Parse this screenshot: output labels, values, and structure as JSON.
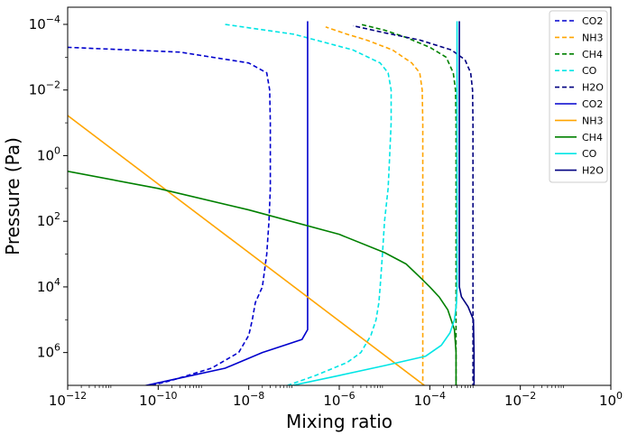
{
  "chart_data": {
    "type": "line",
    "xlabel": "Mixing ratio",
    "ylabel": "Pressure (Pa)",
    "x_scale": "log",
    "y_scale": "log",
    "y_inverted": true,
    "xlim": [
      1e-12,
      1
    ],
    "ylim": [
      10000000.0,
      3e-05
    ],
    "x_ticks": [
      {
        "value": 1e-12,
        "base": "10",
        "exp": "−12"
      },
      {
        "value": 1e-10,
        "base": "10",
        "exp": "−10"
      },
      {
        "value": 1e-08,
        "base": "10",
        "exp": "−8"
      },
      {
        "value": 1e-06,
        "base": "10",
        "exp": "−6"
      },
      {
        "value": 0.0001,
        "base": "10",
        "exp": "−4"
      },
      {
        "value": 0.01,
        "base": "10",
        "exp": "−2"
      },
      {
        "value": 1,
        "base": "10",
        "exp": "0"
      }
    ],
    "y_ticks": [
      {
        "value": 0.0001,
        "base": "10",
        "exp": "−4"
      },
      {
        "value": 0.01,
        "base": "10",
        "exp": "−2"
      },
      {
        "value": 1,
        "base": "10",
        "exp": "0"
      },
      {
        "value": 100.0,
        "base": "10",
        "exp": "2"
      },
      {
        "value": 10000.0,
        "base": "10",
        "exp": "4"
      },
      {
        "value": 1000000.0,
        "base": "10",
        "exp": "6"
      }
    ],
    "grid": false,
    "legend_position": "top-right",
    "series": [
      {
        "name": "CO2",
        "style": "dashed",
        "color": "#0000cd",
        "points": [
          [
            3.5e-11,
            13000000.0
          ],
          [
            2e-10,
            7000000.0
          ],
          [
            1.5e-09,
            3000000.0
          ],
          [
            6e-09,
            1000000.0
          ],
          [
            1e-08,
            300000.0
          ],
          [
            1.2e-08,
            100000.0
          ],
          [
            1.4e-08,
            30000.0
          ],
          [
            2e-08,
            10000.0
          ],
          [
            2.5e-08,
            1000.0
          ],
          [
            2.8e-08,
            100.0
          ],
          [
            3e-08,
            10
          ],
          [
            3e-08,
            1
          ],
          [
            3e-08,
            0.1
          ],
          [
            2.9e-08,
            0.01
          ],
          [
            2.5e-08,
            0.003
          ],
          [
            1e-08,
            0.0015
          ],
          [
            3e-10,
            0.0007
          ],
          [
            1e-12,
            0.0005
          ]
        ]
      },
      {
        "name": "NH3",
        "style": "dashed",
        "color": "#ffa500",
        "points": [
          [
            7e-05,
            12000000.0
          ],
          [
            7e-05,
            1000000.0
          ],
          [
            7e-05,
            100000.0
          ],
          [
            7e-05,
            10000.0
          ],
          [
            7e-05,
            1000.0
          ],
          [
            7e-05,
            100.0
          ],
          [
            7e-05,
            10
          ],
          [
            7e-05,
            1
          ],
          [
            7e-05,
            0.1
          ],
          [
            6.8e-05,
            0.01
          ],
          [
            6e-05,
            0.003
          ],
          [
            4e-05,
            0.0015
          ],
          [
            1.5e-05,
            0.0006
          ],
          [
            4e-06,
            0.0003
          ],
          [
            1.5e-06,
            0.0002
          ],
          [
            5e-07,
            0.00012
          ]
        ]
      },
      {
        "name": "CH4",
        "style": "dashed",
        "color": "#008000",
        "points": [
          [
            0.00038,
            12000000.0
          ],
          [
            0.00038,
            1000000.0
          ],
          [
            0.00038,
            100000.0
          ],
          [
            0.00038,
            10000.0
          ],
          [
            0.00038,
            1000.0
          ],
          [
            0.00038,
            100.0
          ],
          [
            0.00038,
            10
          ],
          [
            0.00038,
            1
          ],
          [
            0.00038,
            0.1
          ],
          [
            0.00037,
            0.01
          ],
          [
            0.00033,
            0.003
          ],
          [
            0.00023,
            0.001
          ],
          [
            0.0001,
            0.0005
          ],
          [
            3e-05,
            0.00025
          ],
          [
            1e-05,
            0.00015
          ],
          [
            3e-06,
            0.0001
          ]
        ]
      },
      {
        "name": "CO",
        "style": "dashed",
        "color": "#00e5e5",
        "points": [
          [
            5e-08,
            12000000.0
          ],
          [
            3e-07,
            5000000.0
          ],
          [
            1.5e-06,
            2000000.0
          ],
          [
            3e-06,
            1000000.0
          ],
          [
            5e-06,
            300000.0
          ],
          [
            6.5e-06,
            100000.0
          ],
          [
            7.5e-06,
            30000.0
          ],
          [
            8e-06,
            10000.0
          ],
          [
            9e-06,
            1000.0
          ],
          [
            1e-05,
            100.0
          ],
          [
            1.2e-05,
            10
          ],
          [
            1.3e-05,
            1
          ],
          [
            1.4e-05,
            0.1
          ],
          [
            1.4e-05,
            0.01
          ],
          [
            1.2e-05,
            0.003
          ],
          [
            8e-06,
            0.0015
          ],
          [
            2e-06,
            0.0006
          ],
          [
            1e-07,
            0.0002
          ],
          [
            3e-09,
            0.0001
          ]
        ]
      },
      {
        "name": "H2O",
        "style": "dashed",
        "color": "#000080",
        "points": [
          [
            0.0009,
            12000000.0
          ],
          [
            0.0009,
            1000000.0
          ],
          [
            0.0009,
            100000.0
          ],
          [
            0.0009,
            10000.0
          ],
          [
            0.0009,
            1000.0
          ],
          [
            0.0009,
            100.0
          ],
          [
            0.0009,
            10
          ],
          [
            0.0009,
            1
          ],
          [
            0.0009,
            0.1
          ],
          [
            0.00088,
            0.01
          ],
          [
            0.0008,
            0.003
          ],
          [
            0.0006,
            0.0012
          ],
          [
            0.0003,
            0.0006
          ],
          [
            6e-05,
            0.0003
          ],
          [
            1e-05,
            0.00018
          ],
          [
            2e-06,
            0.00011
          ]
        ]
      },
      {
        "name": "CO2",
        "style": "solid",
        "color": "#0000cd",
        "points": [
          [
            3e-11,
            12000000.0
          ],
          [
            3e-10,
            6000000.0
          ],
          [
            3e-09,
            3000000.0
          ],
          [
            2e-08,
            1000000.0
          ],
          [
            1.5e-07,
            400000.0
          ],
          [
            2e-07,
            200000.0
          ],
          [
            2e-07,
            50000.0
          ],
          [
            2e-07,
            10000.0
          ],
          [
            2e-07,
            1000.0
          ],
          [
            2e-07,
            100.0
          ],
          [
            2e-07,
            1
          ],
          [
            2e-07,
            0.01
          ],
          [
            2e-07,
            0.0001
          ],
          [
            2e-07,
            8e-05
          ]
        ]
      },
      {
        "name": "NH3",
        "style": "solid",
        "color": "#ffa500",
        "points": [
          [
            1e-12,
            0.06
          ],
          [
            9e-05,
            12000000.0
          ]
        ]
      },
      {
        "name": "CH4",
        "style": "solid",
        "color": "#008000",
        "points": [
          [
            1e-12,
            3
          ],
          [
            1e-10,
            10
          ],
          [
            1e-08,
            45
          ],
          [
            1e-06,
            250
          ],
          [
            1e-05,
            900
          ],
          [
            3e-05,
            2000
          ],
          [
            6e-05,
            5000
          ],
          [
            0.0001,
            10000.0
          ],
          [
            0.00016,
            20000.0
          ],
          [
            0.00025,
            50000.0
          ],
          [
            0.00035,
            200000.0
          ],
          [
            0.00038,
            1000000.0
          ],
          [
            0.00038,
            12000000.0
          ]
        ]
      },
      {
        "name": "CO",
        "style": "solid",
        "color": "#00e5e5",
        "points": [
          [
            5e-08,
            12000000.0
          ],
          [
            1e-06,
            5000000.0
          ],
          [
            1e-05,
            2500000.0
          ],
          [
            8e-05,
            1300000.0
          ],
          [
            0.00018,
            600000.0
          ],
          [
            0.00028,
            250000.0
          ],
          [
            0.00035,
            100000.0
          ],
          [
            0.00039,
            30000.0
          ],
          [
            0.0004,
            10000.0
          ],
          [
            0.0004,
            1000.0
          ],
          [
            0.0004,
            10
          ],
          [
            0.0004,
            0.1
          ],
          [
            0.0004,
            0.001
          ],
          [
            0.0004,
            8e-05
          ]
        ]
      },
      {
        "name": "H2O",
        "style": "solid",
        "color": "#000080",
        "points": [
          [
            0.00095,
            12000000.0
          ],
          [
            0.00095,
            1000000.0
          ],
          [
            0.00092,
            100000.0
          ],
          [
            0.0007,
            40000.0
          ],
          [
            0.0005,
            20000.0
          ],
          [
            0.00045,
            10000.0
          ],
          [
            0.00045,
            1000.0
          ],
          [
            0.00045,
            10
          ],
          [
            0.00045,
            0.1
          ],
          [
            0.00045,
            0.001
          ],
          [
            0.00045,
            8e-05
          ]
        ]
      }
    ]
  }
}
